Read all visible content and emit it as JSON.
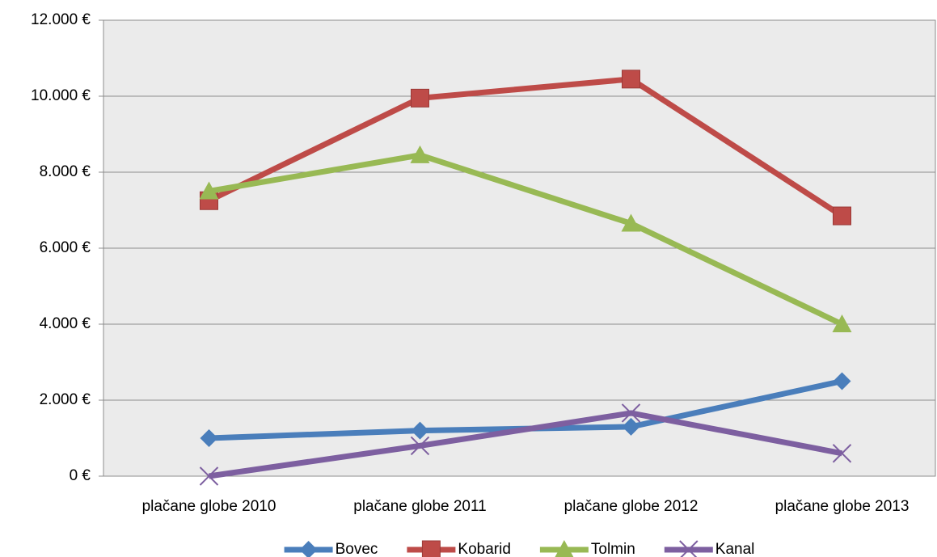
{
  "chart_data": {
    "type": "line",
    "categories": [
      "plačane globe 2010",
      "plačane globe 2011",
      "plačane globe 2012",
      "plačane globe 2013"
    ],
    "series": [
      {
        "name": "Bovec",
        "color": "#4a7ebb",
        "marker": "diamond",
        "values": [
          1000,
          1200,
          1300,
          2500
        ]
      },
      {
        "name": "Kobarid",
        "color": "#be4b48",
        "marker": "square",
        "values": [
          7250,
          9950,
          10450,
          6850
        ]
      },
      {
        "name": "Tolmin",
        "color": "#98b954",
        "marker": "triangle",
        "values": [
          7500,
          8450,
          6650,
          4000
        ]
      },
      {
        "name": "Kanal",
        "color": "#7d5fa0",
        "marker": "x",
        "values": [
          0,
          800,
          1660,
          600
        ]
      }
    ],
    "ylim": [
      0,
      12000
    ],
    "yticks": [
      {
        "value": 0,
        "label": "0 €"
      },
      {
        "value": 2000,
        "label": "2.000 €"
      },
      {
        "value": 4000,
        "label": "4.000 €"
      },
      {
        "value": 6000,
        "label": "6.000 €"
      },
      {
        "value": 8000,
        "label": "8.000 €"
      },
      {
        "value": 10000,
        "label": "10.000 €"
      },
      {
        "value": 12000,
        "label": "12.000 €"
      }
    ],
    "grid": true,
    "legend": "bottom"
  }
}
